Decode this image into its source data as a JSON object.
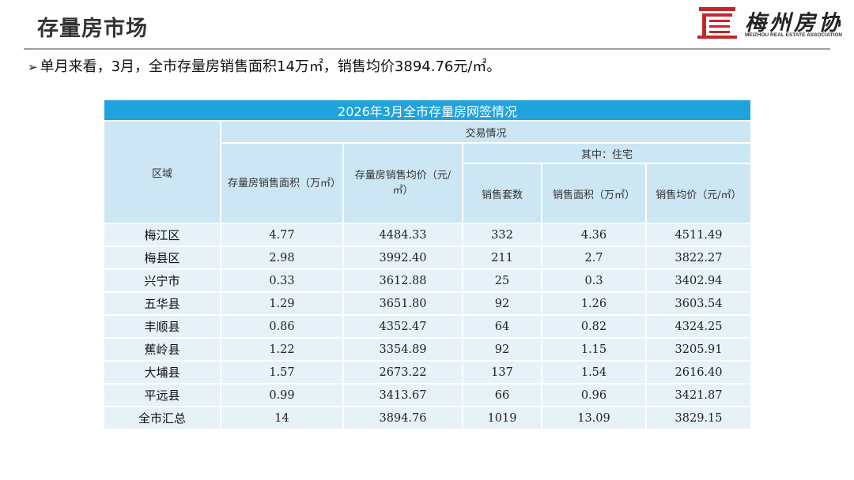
{
  "page": {
    "title": "存量房市场",
    "summary_bullet": "➢",
    "summary": "单月来看，3月，全市存量房销售面积14万㎡，销售均价3894.76元/㎡。"
  },
  "logo": {
    "name": "梅州房协",
    "subtitle": "MEIZHOU REAL ESTATE ASSOCIATION",
    "mark_color": "#c0282d"
  },
  "table": {
    "title": "2026年3月全市存量房网签情况",
    "headers": {
      "region": "区域",
      "transaction": "交易情况",
      "area": "存量房销售面积（万㎡）",
      "avg_price": "存量房销售均价（元/㎡）",
      "residential": "其中：住宅",
      "units": "销售套数",
      "res_area": "销售面积（万㎡）",
      "res_price": "销售均价（元/㎡）"
    },
    "rows": [
      {
        "region": "梅江区",
        "area": "4.77",
        "avg_price": "4484.33",
        "units": "332",
        "res_area": "4.36",
        "res_price": "4511.49"
      },
      {
        "region": "梅县区",
        "area": "2.98",
        "avg_price": "3992.40",
        "units": "211",
        "res_area": "2.7",
        "res_price": "3822.27"
      },
      {
        "region": "兴宁市",
        "area": "0.33",
        "avg_price": "3612.88",
        "units": "25",
        "res_area": "0.3",
        "res_price": "3402.94"
      },
      {
        "region": "五华县",
        "area": "1.29",
        "avg_price": "3651.80",
        "units": "92",
        "res_area": "1.26",
        "res_price": "3603.54"
      },
      {
        "region": "丰顺县",
        "area": "0.86",
        "avg_price": "4352.47",
        "units": "64",
        "res_area": "0.82",
        "res_price": "4324.25"
      },
      {
        "region": "蕉岭县",
        "area": "1.22",
        "avg_price": "3354.89",
        "units": "92",
        "res_area": "1.15",
        "res_price": "3205.91"
      },
      {
        "region": "大埔县",
        "area": "1.57",
        "avg_price": "2673.22",
        "units": "137",
        "res_area": "1.54",
        "res_price": "2616.40"
      },
      {
        "region": "平远县",
        "area": "0.99",
        "avg_price": "3413.67",
        "units": "66",
        "res_area": "0.96",
        "res_price": "3421.87"
      },
      {
        "region": "全市汇总",
        "area": "14",
        "avg_price": "3894.76",
        "units": "1019",
        "res_area": "13.09",
        "res_price": "3829.15"
      }
    ]
  },
  "colors": {
    "title_bar": "#20a3dc",
    "header_cell": "#cce6f3",
    "body_cell": "#e6f1f8"
  }
}
